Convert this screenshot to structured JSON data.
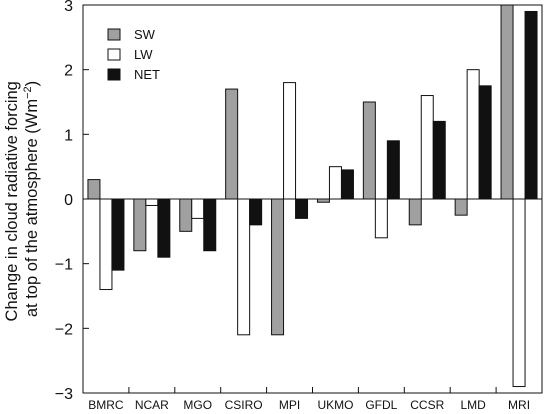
{
  "chart_data": {
    "type": "bar",
    "title": "",
    "xlabel": "",
    "ylabel_lines": [
      "Change in cloud radiative forcing",
      "at top of the atmosphere (Wm",
      "−2",
      ")"
    ],
    "ylim": [
      -3,
      3
    ],
    "yticks": [
      -3,
      -2,
      -1,
      0,
      1,
      2,
      3
    ],
    "ytick_labels": [
      "−3",
      "−2",
      "−1",
      "0",
      "1",
      "2",
      "3"
    ],
    "grid": false,
    "legend_position": "top-left",
    "categories": [
      "BMRC",
      "NCAR",
      "MGO",
      "CSIRO",
      "MPI",
      "UKMO",
      "GFDL",
      "CCSR",
      "LMD",
      "MRI"
    ],
    "series": [
      {
        "name": "SW",
        "color": "#a0a0a0",
        "values": [
          0.3,
          -0.8,
          -0.5,
          1.7,
          -2.1,
          -0.05,
          1.5,
          -0.4,
          -0.25,
          3.0
        ]
      },
      {
        "name": "LW",
        "color": "#ffffff",
        "values": [
          -1.4,
          -0.1,
          -0.3,
          -2.1,
          1.8,
          0.5,
          -0.6,
          1.6,
          2.0,
          -2.9
        ]
      },
      {
        "name": "NET",
        "color": "#111111",
        "values": [
          -1.1,
          -0.9,
          -0.8,
          -0.4,
          -0.3,
          0.45,
          0.9,
          1.2,
          1.75,
          2.9
        ]
      }
    ]
  }
}
